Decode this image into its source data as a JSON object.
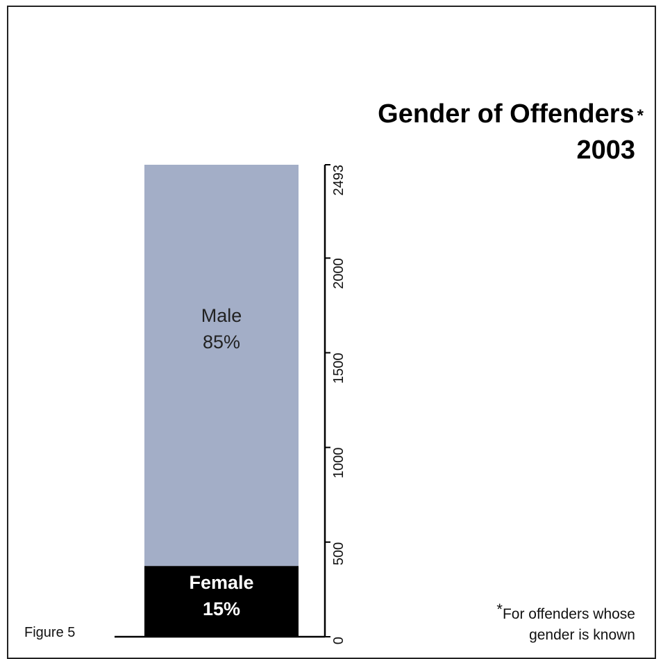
{
  "chart_data": {
    "type": "bar",
    "stacked": true,
    "title": "Gender of Offenders",
    "title_marker": "*",
    "subtitle": "2003",
    "categories": [
      ""
    ],
    "series": [
      {
        "name": "Female",
        "values": [
          374
        ],
        "label_line1": "Female",
        "label_line2": "15%",
        "color": "#000000",
        "text_color": "#ffffff"
      },
      {
        "name": "Male",
        "values": [
          2119
        ],
        "label_line1": "Male",
        "label_line2": "85%",
        "color": "#a3aec7",
        "text_color": "#222222"
      }
    ],
    "total": 2493,
    "y_axis_position": "right",
    "ylim": [
      0,
      2493
    ],
    "y_ticks": [
      0,
      500,
      1000,
      1500,
      2000,
      2493
    ],
    "grid": false,
    "legend": "none"
  },
  "figure_label": "Figure 5",
  "footnote": {
    "marker": "*",
    "line1": "For offenders whose",
    "line2": "gender is known"
  }
}
